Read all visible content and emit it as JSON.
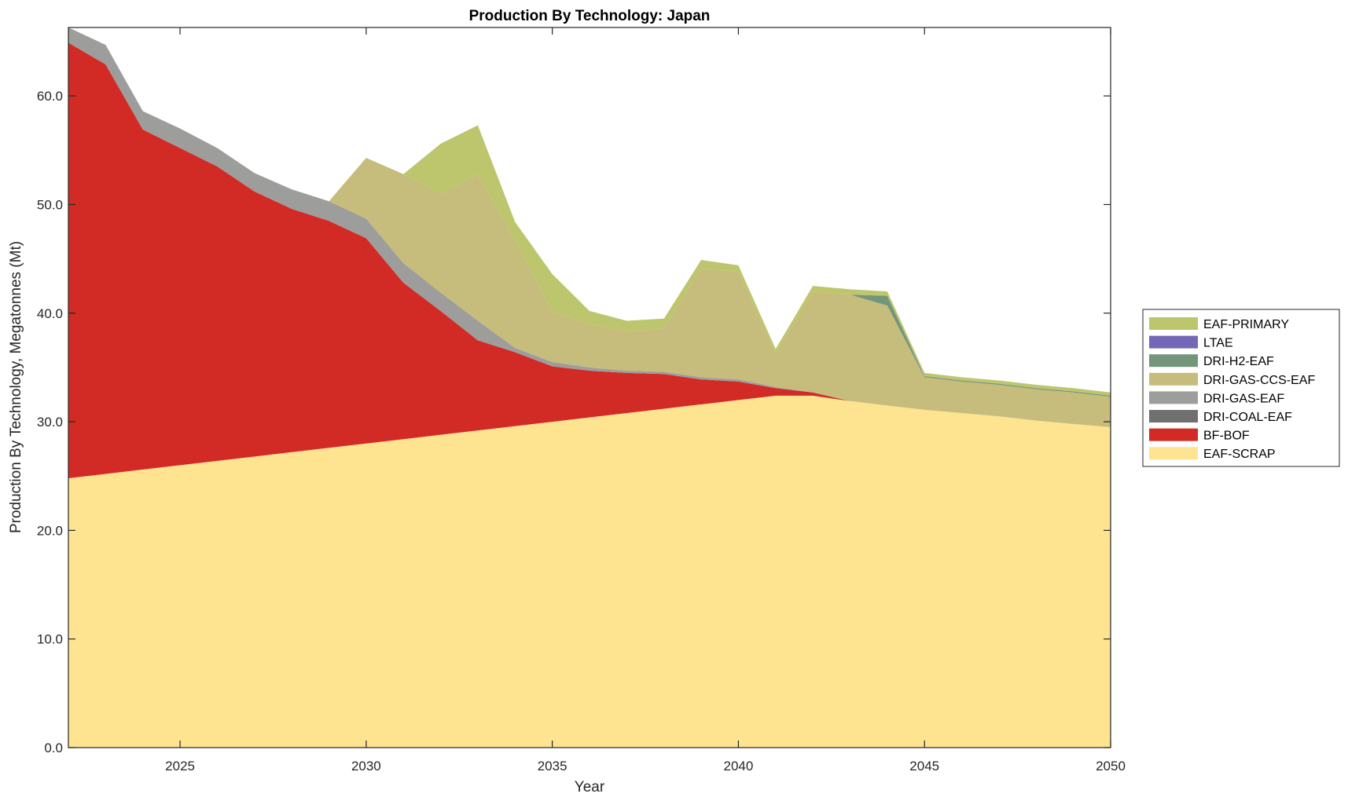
{
  "chart_data": {
    "type": "area",
    "stacked": true,
    "title": "Production By Technology: Japan",
    "xlabel": "Year",
    "ylabel": "Production By Technology, Megatonnes (Mt)",
    "xlim": [
      2022,
      2050
    ],
    "ylim": [
      0,
      66.3
    ],
    "xticks": [
      2025,
      2030,
      2035,
      2040,
      2045,
      2050
    ],
    "xtick_labels": [
      "2025",
      "2030",
      "2035",
      "2040",
      "2045",
      "2050"
    ],
    "yticks": [
      0,
      10,
      20,
      30,
      40,
      50,
      60
    ],
    "ytick_labels": [
      "0.0",
      "10.0",
      "20.0",
      "30.0",
      "40.0",
      "50.0",
      "60.0"
    ],
    "grid": false,
    "legend_position": "right",
    "x": [
      2022,
      2023,
      2024,
      2025,
      2026,
      2027,
      2028,
      2029,
      2030,
      2031,
      2032,
      2033,
      2034,
      2035,
      2036,
      2037,
      2038,
      2039,
      2040,
      2041,
      2042,
      2043,
      2044,
      2045,
      2046,
      2047,
      2048,
      2049,
      2050
    ],
    "series": [
      {
        "name": "EAF-SCRAP",
        "color": "#FEE391",
        "values": [
          24.8,
          25.2,
          25.6,
          26.0,
          26.4,
          26.8,
          27.2,
          27.6,
          28.0,
          28.4,
          28.8,
          29.2,
          29.6,
          30.0,
          30.4,
          30.8,
          31.2,
          31.6,
          32.0,
          32.4,
          32.4,
          31.9,
          31.5,
          31.1,
          30.8,
          30.5,
          30.1,
          29.8,
          29.5
        ]
      },
      {
        "name": "BF-BOF",
        "color": "#D22B25",
        "values": [
          40.1,
          37.7,
          31.3,
          29.2,
          27.1,
          24.4,
          22.4,
          20.9,
          18.9,
          14.4,
          11.4,
          8.3,
          6.8,
          5.1,
          4.3,
          3.7,
          3.2,
          2.3,
          1.7,
          0.7,
          0.3,
          0,
          0,
          0,
          0,
          0,
          0,
          0,
          0
        ]
      },
      {
        "name": "DRI-COAL-EAF",
        "color": "#707070",
        "values": [
          0,
          0,
          0,
          0,
          0,
          0,
          0,
          0,
          0,
          0,
          0,
          0,
          0,
          0,
          0,
          0,
          0,
          0,
          0,
          0,
          0,
          0,
          0,
          0,
          0,
          0,
          0,
          0,
          0
        ]
      },
      {
        "name": "DRI-GAS-EAF",
        "color": "#9D9D9C",
        "values": [
          1.4,
          1.8,
          1.7,
          1.8,
          1.7,
          1.7,
          1.8,
          1.8,
          1.8,
          1.8,
          1.7,
          1.8,
          0.4,
          0.4,
          0.3,
          0.2,
          0.2,
          0.2,
          0.2,
          0.1,
          0,
          0,
          0,
          0,
          0,
          0,
          0,
          0,
          0
        ]
      },
      {
        "name": "DRI-GAS-CCS-EAF",
        "color": "#C6BC7C",
        "values": [
          0,
          0,
          0,
          0,
          0,
          0,
          0,
          0,
          5.6,
          8.2,
          9.1,
          13.5,
          9.9,
          4.6,
          4.0,
          3.6,
          4.0,
          10.0,
          9.9,
          3.1,
          9.3,
          9.8,
          9.2,
          3.0,
          2.9,
          2.9,
          2.9,
          2.9,
          2.8
        ]
      },
      {
        "name": "DRI-H2-EAF",
        "color": "#73967A",
        "values": [
          0,
          0,
          0,
          0,
          0,
          0,
          0,
          0,
          0,
          0,
          0,
          0,
          0,
          0,
          0,
          0,
          0,
          0,
          0,
          0,
          0,
          0,
          0.9,
          0.1,
          0.1,
          0.1,
          0.1,
          0.1,
          0.1
        ]
      },
      {
        "name": "LTAE",
        "color": "#7467B7",
        "values": [
          0,
          0,
          0,
          0,
          0,
          0,
          0,
          0,
          0,
          0,
          0,
          0,
          0,
          0,
          0,
          0,
          0,
          0,
          0,
          0,
          0,
          0,
          0,
          0,
          0,
          0,
          0,
          0,
          0
        ]
      },
      {
        "name": "EAF-PRIMARY",
        "color": "#BDC66C",
        "values": [
          0,
          0,
          0,
          0,
          0,
          0,
          0,
          0,
          0,
          0,
          4.6,
          4.5,
          1.7,
          3.5,
          1.2,
          1.0,
          0.9,
          0.8,
          0.6,
          0.4,
          0.5,
          0.5,
          0.4,
          0.3,
          0.3,
          0.3,
          0.3,
          0.3,
          0.3
        ]
      }
    ],
    "legend_order": [
      "EAF-PRIMARY",
      "LTAE",
      "DRI-H2-EAF",
      "DRI-GAS-CCS-EAF",
      "DRI-GAS-EAF",
      "DRI-COAL-EAF",
      "BF-BOF",
      "EAF-SCRAP"
    ]
  }
}
